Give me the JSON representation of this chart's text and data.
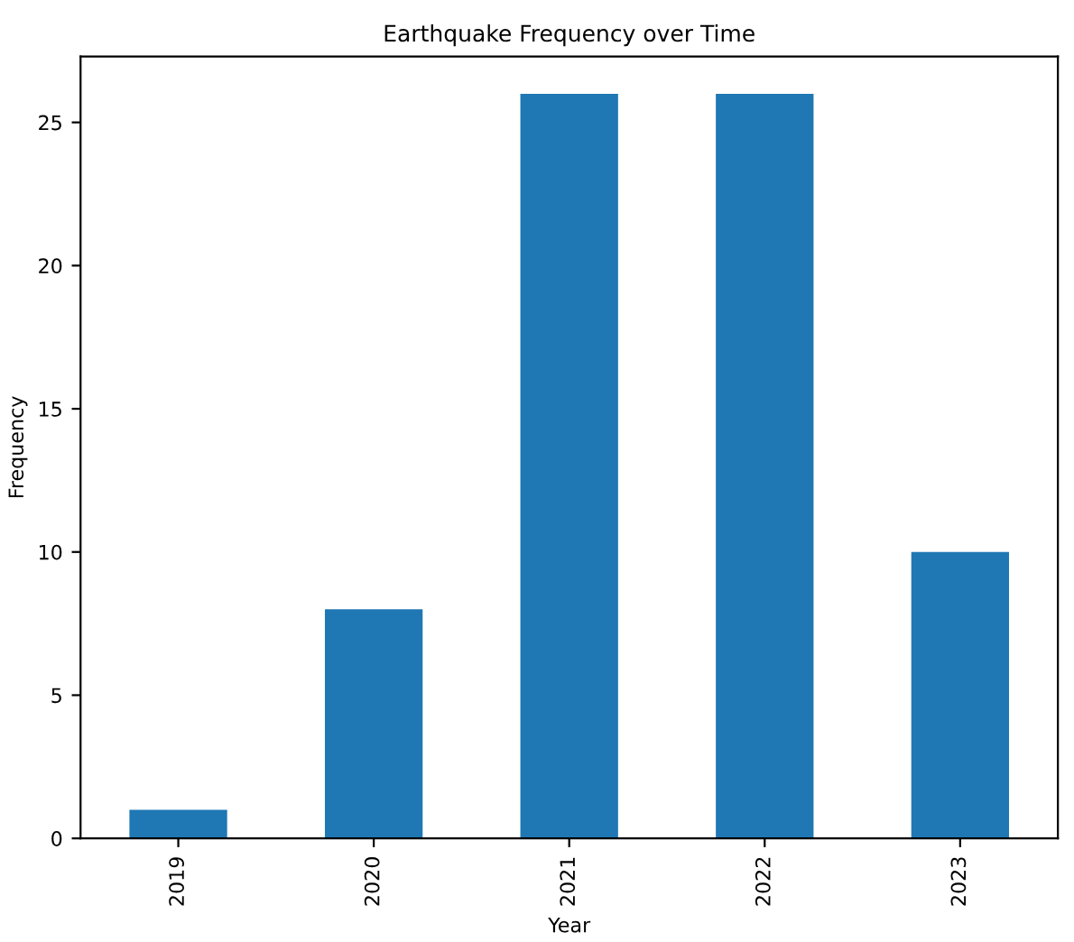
{
  "chart_data": {
    "type": "bar",
    "title": "Earthquake Frequency over Time",
    "xlabel": "Year",
    "ylabel": "Frequency",
    "categories": [
      "2019",
      "2020",
      "2021",
      "2022",
      "2023"
    ],
    "values": [
      1,
      8,
      26,
      26,
      10
    ],
    "color": "#1f77b4",
    "ylim": [
      0,
      27.3
    ],
    "yticks": [
      0,
      5,
      10,
      15,
      20,
      25
    ],
    "grid": false,
    "legend": false
  }
}
